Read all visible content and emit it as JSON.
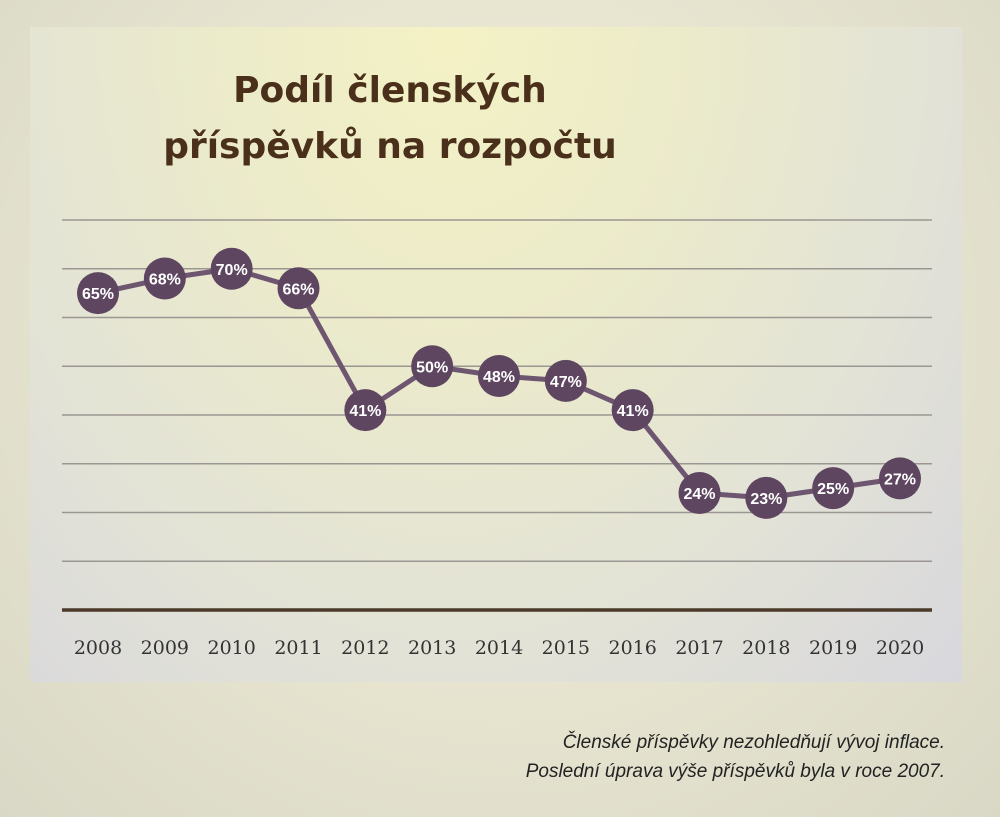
{
  "chart_data": {
    "type": "line",
    "title": "Podíl členských příspěvků na rozpočtu",
    "categories": [
      "2008",
      "2009",
      "2010",
      "2011",
      "2012",
      "2013",
      "2014",
      "2015",
      "2016",
      "2017",
      "2018",
      "2019",
      "2020"
    ],
    "series": [
      {
        "values": [
          65,
          68,
          70,
          66,
          41,
          50,
          48,
          47,
          41,
          24,
          23,
          25,
          27
        ]
      }
    ],
    "value_suffix": "%",
    "ylim": [
      0,
      80
    ],
    "grid": true,
    "colors": {
      "line": "#6e5670",
      "marker": "#5e4660",
      "label": "#ffffff",
      "grid": "#9b9692",
      "baseline": "#4b3a2a"
    }
  },
  "footnote": {
    "line1": "Členské příspěvky nezohledňují vývoj inflace.",
    "line2": "Poslední úprava výše příspěvků byla v roce 2007."
  }
}
